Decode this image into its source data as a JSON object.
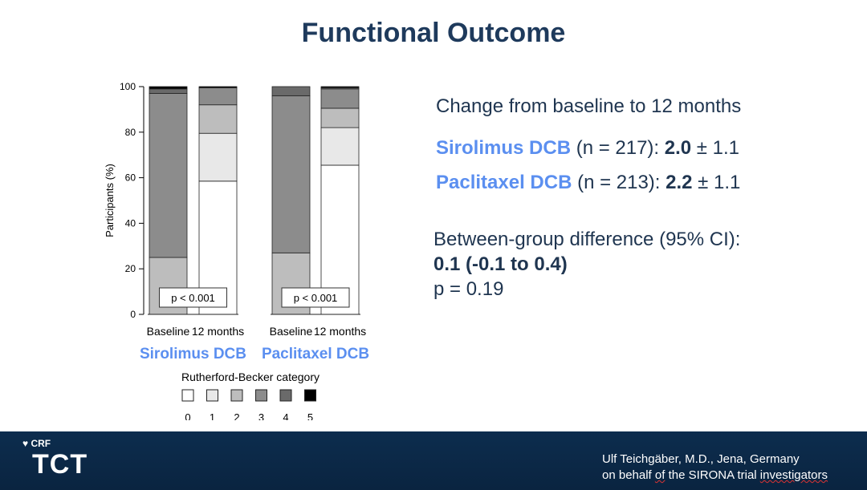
{
  "slide": {
    "title": "Functional Outcome"
  },
  "summary": {
    "heading": "Change from baseline to 12 months",
    "sirolimus_name": "Sirolimus DCB",
    "sirolimus_n": " (n = 217): ",
    "sirolimus_mean": "2.0",
    "sirolimus_pm": " ± ",
    "sirolimus_sd": "1.1",
    "paclitaxel_name": "Paclitaxel DCB",
    "paclitaxel_n": " (n = 213): ",
    "paclitaxel_mean": "2.2",
    "paclitaxel_pm": " ± ",
    "paclitaxel_sd": "1.1",
    "diff_label": "Between-group difference (95% CI):",
    "diff_value": "0.1 (-0.1 to 0.4)",
    "p_value": "p = 0.19"
  },
  "chart_data": {
    "type": "bar",
    "stacked": true,
    "ylabel": "Participants (%)",
    "ylim": [
      0,
      100
    ],
    "yticks": [
      "0",
      "20",
      "40",
      "60",
      "80",
      "100"
    ],
    "categories": [
      "Baseline",
      "12 months",
      "Baseline",
      "12 months"
    ],
    "groups": [
      {
        "name": "Sirolimus DCB",
        "bars": [
          0,
          1
        ],
        "p_label": "p < 0.001"
      },
      {
        "name": "Paclitaxel DCB",
        "bars": [
          2,
          3
        ],
        "p_label": "p < 0.001"
      }
    ],
    "legend_title": "Rutherford-Becker category",
    "legend_placement": "bottom",
    "series": [
      {
        "name": "0",
        "color": "#ffffff",
        "values": [
          0,
          58.5,
          0,
          65.5
        ]
      },
      {
        "name": "1",
        "color": "#e8e8e8",
        "values": [
          0,
          21,
          0,
          16.5
        ]
      },
      {
        "name": "2",
        "color": "#bdbdbd",
        "values": [
          25,
          12.5,
          27,
          8.5
        ]
      },
      {
        "name": "3",
        "color": "#8c8c8c",
        "values": [
          72,
          7.5,
          69,
          8.5
        ]
      },
      {
        "name": "4",
        "color": "#6a6a6a",
        "values": [
          2,
          0,
          4,
          0.5
        ]
      },
      {
        "name": "5",
        "color": "#000000",
        "values": [
          1,
          0.5,
          0,
          0.5
        ]
      }
    ]
  },
  "footer": {
    "crf": "CRF",
    "logo": "TCT",
    "author_line1": "Ulf Teichgäber, M.D., Jena, Germany",
    "author_line2_pre": "on behalf ",
    "author_line2_of": "of",
    "author_line2_mid": " the SIRONA trial ",
    "author_line2_inv": "investigators"
  }
}
